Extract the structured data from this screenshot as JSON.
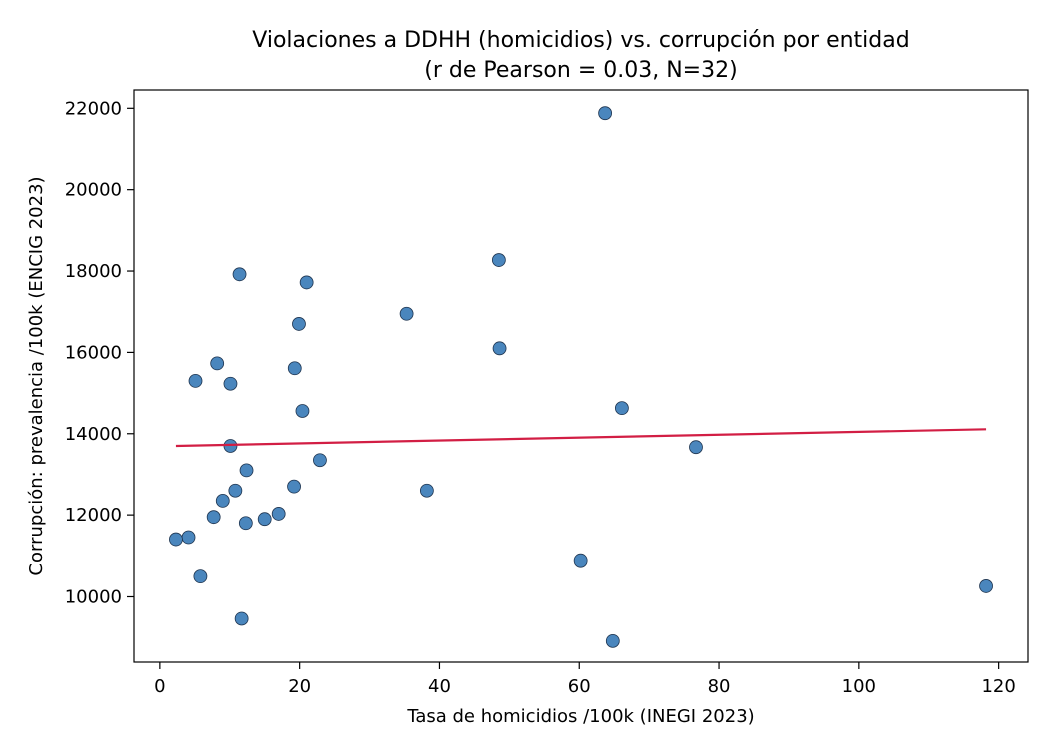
{
  "chart_data": {
    "type": "scatter",
    "title": "Violaciones a DDHH (homicidios) vs. corrupción por entidad",
    "subtitle": "(r de Pearson = 0.03, N=32)",
    "xlabel": "Tasa de homicidios /100k (INEGI 2023)",
    "ylabel": "Corrupción: prevalencia /100k (ENCIG 2023)",
    "xlim": [
      -3.7,
      124.2
    ],
    "ylim": [
      8390,
      22450
    ],
    "xticks": [
      0,
      20,
      40,
      60,
      80,
      100,
      120
    ],
    "yticks": [
      10000,
      12000,
      14000,
      16000,
      18000,
      20000,
      22000
    ],
    "grid": false,
    "points": [
      {
        "x": 63.7,
        "y": 21880
      },
      {
        "x": 48.5,
        "y": 18270
      },
      {
        "x": 11.4,
        "y": 17920
      },
      {
        "x": 21.0,
        "y": 17720
      },
      {
        "x": 35.3,
        "y": 16950
      },
      {
        "x": 19.9,
        "y": 16700
      },
      {
        "x": 48.6,
        "y": 16100
      },
      {
        "x": 8.2,
        "y": 15730
      },
      {
        "x": 19.3,
        "y": 15610
      },
      {
        "x": 5.1,
        "y": 15300
      },
      {
        "x": 10.1,
        "y": 15230
      },
      {
        "x": 66.1,
        "y": 14630
      },
      {
        "x": 20.4,
        "y": 14560
      },
      {
        "x": 10.1,
        "y": 13700
      },
      {
        "x": 76.7,
        "y": 13670
      },
      {
        "x": 22.9,
        "y": 13350
      },
      {
        "x": 12.4,
        "y": 13100
      },
      {
        "x": 19.2,
        "y": 12700
      },
      {
        "x": 10.8,
        "y": 12600
      },
      {
        "x": 38.2,
        "y": 12600
      },
      {
        "x": 9.0,
        "y": 12350
      },
      {
        "x": 17.0,
        "y": 12030
      },
      {
        "x": 7.7,
        "y": 11950
      },
      {
        "x": 15.0,
        "y": 11900
      },
      {
        "x": 12.3,
        "y": 11800
      },
      {
        "x": 4.1,
        "y": 11450
      },
      {
        "x": 2.3,
        "y": 11400
      },
      {
        "x": 60.2,
        "y": 10880
      },
      {
        "x": 5.8,
        "y": 10500
      },
      {
        "x": 118.2,
        "y": 10260
      },
      {
        "x": 11.7,
        "y": 9460
      },
      {
        "x": 64.8,
        "y": 8910
      }
    ],
    "trendline": {
      "x": [
        2.3,
        118.2
      ],
      "y": [
        13700,
        14110
      ]
    },
    "colors": {
      "point_fill": "#4a86bd",
      "point_edge": "#1f3550",
      "trendline": "#d21e44",
      "axes": "#000000"
    }
  }
}
